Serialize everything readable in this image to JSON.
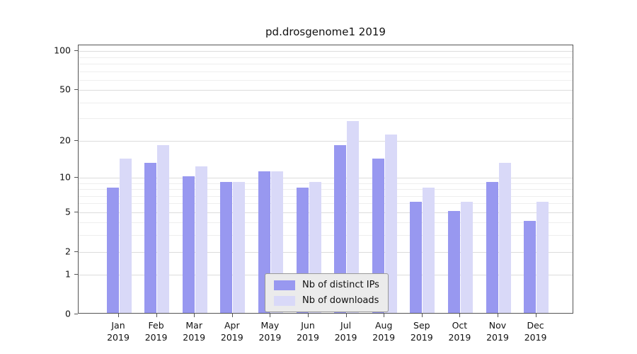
{
  "title": "pd.drosgenome1 2019",
  "chart_data": {
    "type": "bar",
    "scale": "log1p",
    "grid": "horizontal",
    "categories": [
      "Jan",
      "Feb",
      "Mar",
      "Apr",
      "May",
      "Jun",
      "Jul",
      "Aug",
      "Sep",
      "Oct",
      "Nov",
      "Dec"
    ],
    "year": "2019",
    "series": [
      {
        "name": "Nb of distinct IPs",
        "color": "#9898f0",
        "values": [
          8,
          13,
          10,
          9,
          11,
          8,
          18,
          14,
          6,
          5,
          9,
          4
        ]
      },
      {
        "name": "Nb of downloads",
        "color": "#d9d9f8",
        "values": [
          14,
          18,
          12,
          9,
          11,
          9,
          28,
          22,
          8,
          6,
          13,
          6
        ]
      }
    ],
    "ylim": [
      0,
      100
    ],
    "yticks": [
      0,
      1,
      2,
      5,
      10,
      20,
      50,
      100
    ],
    "minor_gridlines": [
      1,
      2,
      3,
      4,
      5,
      6,
      7,
      8,
      9,
      10,
      20,
      30,
      40,
      50,
      60,
      70,
      80,
      90,
      100
    ],
    "legend_position": "bottom-center",
    "colors": {
      "spine": "#555555",
      "grid_major": "#dcdcdc",
      "grid_minor": "#eeeeee",
      "legend_bg": "#ebebeb",
      "legend_border": "#999999"
    }
  }
}
